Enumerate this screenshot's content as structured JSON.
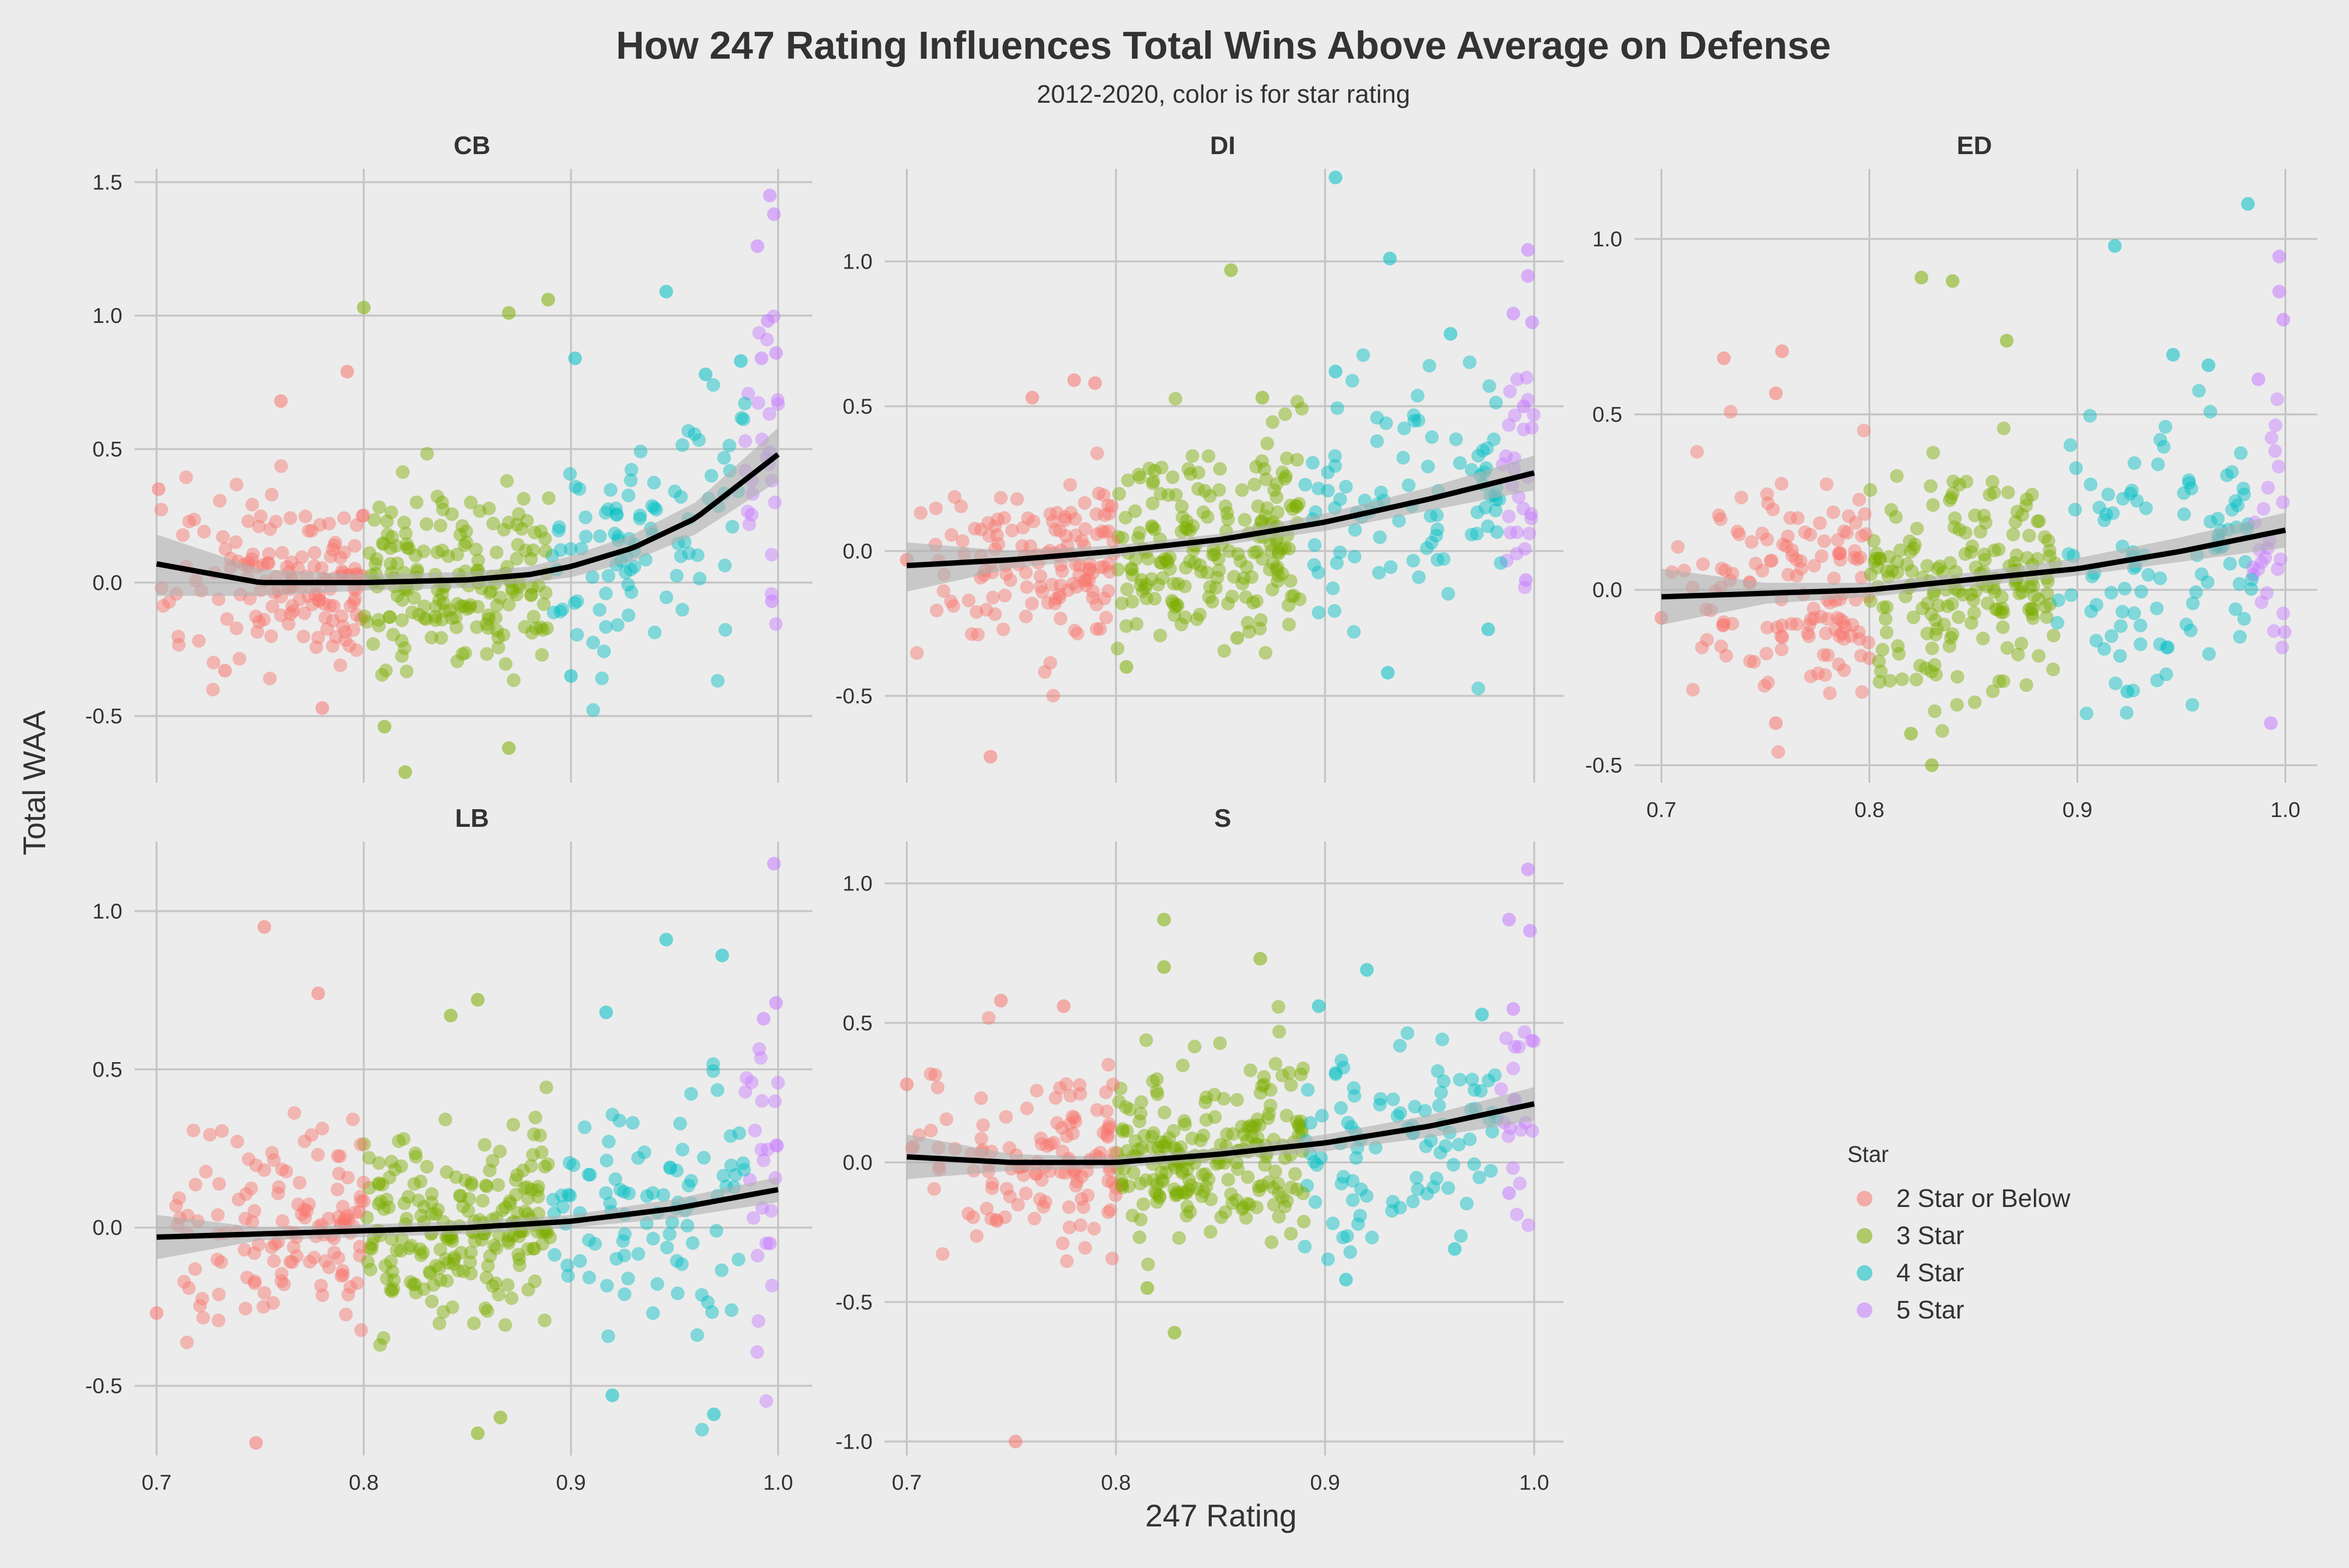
{
  "title": "How 247 Rating Influences Total Wins Above Average on Defense",
  "subtitle": "2012-2020, color is for star rating",
  "xlabel": "247 Rating",
  "ylabel": "Total WAA",
  "legend": {
    "title": "Star",
    "position": "right",
    "items": [
      {
        "label": "2 Star or Below",
        "color": "#F8766D"
      },
      {
        "label": "3 Star",
        "color": "#7CAE00"
      },
      {
        "label": "4 Star",
        "color": "#00BFC4"
      },
      {
        "label": "5 Star",
        "color": "#C77CFF"
      }
    ]
  },
  "colors": {
    "background": "#ececec",
    "grid": "#c6c6c6",
    "trend": "#000000",
    "band": "#b0b0b0"
  },
  "chart_data": {
    "type": "scatter",
    "facets": [
      {
        "name": "CB",
        "xlim": [
          0.7,
          1.0
        ],
        "ylim": [
          -0.75,
          1.55
        ],
        "xticks": [
          0.7,
          0.8,
          0.9,
          1.0
        ],
        "yticks": [
          -0.5,
          0.0,
          0.5,
          1.0,
          1.5
        ],
        "ytick_labels": [
          "-0.5",
          "0.0",
          "0.5",
          "1.0",
          "1.5"
        ],
        "trend": {
          "x": [
            0.7,
            0.75,
            0.8,
            0.85,
            0.88,
            0.9,
            0.93,
            0.96,
            1.0
          ],
          "y": [
            0.07,
            0.0,
            0.0,
            0.01,
            0.03,
            0.06,
            0.13,
            0.24,
            0.48
          ]
        },
        "band": {
          "upper": [
            0.18,
            0.05,
            0.03,
            0.04,
            0.06,
            0.1,
            0.18,
            0.3,
            0.58
          ],
          "lower": [
            -0.05,
            -0.05,
            -0.03,
            -0.02,
            0.0,
            0.02,
            0.08,
            0.18,
            0.38
          ]
        },
        "highlights": [
          {
            "x": 0.8,
            "y": 1.03,
            "star": 2
          },
          {
            "x": 0.87,
            "y": 1.01,
            "star": 2
          },
          {
            "x": 0.889,
            "y": 1.06,
            "star": 2
          },
          {
            "x": 0.82,
            "y": -0.71,
            "star": 2
          },
          {
            "x": 0.87,
            "y": -0.62,
            "star": 2
          },
          {
            "x": 0.81,
            "y": -0.54,
            "star": 2
          },
          {
            "x": 0.902,
            "y": 0.84,
            "star": 3
          },
          {
            "x": 0.946,
            "y": 1.09,
            "star": 3
          },
          {
            "x": 0.982,
            "y": 0.83,
            "star": 3
          },
          {
            "x": 0.965,
            "y": 0.78,
            "star": 3
          },
          {
            "x": 0.9,
            "y": -0.35,
            "star": 3
          },
          {
            "x": 0.996,
            "y": 1.45,
            "star": 4
          },
          {
            "x": 0.998,
            "y": 1.38,
            "star": 4
          },
          {
            "x": 0.99,
            "y": 1.26,
            "star": 4
          },
          {
            "x": 0.995,
            "y": 0.98,
            "star": 4
          },
          {
            "x": 0.999,
            "y": 0.86,
            "star": 4
          },
          {
            "x": 0.992,
            "y": 0.84,
            "star": 4
          },
          {
            "x": 0.997,
            "y": -0.07,
            "star": 4
          },
          {
            "x": 0.701,
            "y": 0.35,
            "star": 1
          },
          {
            "x": 0.76,
            "y": 0.68,
            "star": 1
          },
          {
            "x": 0.792,
            "y": 0.79,
            "star": 1
          },
          {
            "x": 0.78,
            "y": -0.47,
            "star": 1
          },
          {
            "x": 0.733,
            "y": -0.33,
            "star": 1
          }
        ]
      },
      {
        "name": "DI",
        "xlim": [
          0.7,
          1.0
        ],
        "ylim": [
          -0.8,
          1.32
        ],
        "xticks": [
          0.7,
          0.8,
          0.9,
          1.0
        ],
        "yticks": [
          -0.5,
          0.0,
          0.5,
          1.0
        ],
        "ytick_labels": [
          "-0.5",
          "0.0",
          "0.5",
          "1.0"
        ],
        "trend": {
          "x": [
            0.7,
            0.75,
            0.8,
            0.85,
            0.9,
            0.95,
            1.0
          ],
          "y": [
            -0.05,
            -0.03,
            0.0,
            0.04,
            0.1,
            0.18,
            0.27
          ]
        },
        "band": {
          "upper": [
            0.03,
            0.0,
            0.02,
            0.06,
            0.13,
            0.22,
            0.33
          ],
          "lower": [
            -0.14,
            -0.06,
            -0.02,
            0.02,
            0.07,
            0.14,
            0.21
          ]
        },
        "highlights": [
          {
            "x": 0.855,
            "y": 0.97,
            "star": 2
          },
          {
            "x": 0.87,
            "y": 0.53,
            "star": 2
          },
          {
            "x": 0.805,
            "y": -0.4,
            "star": 2
          },
          {
            "x": 0.858,
            "y": -0.3,
            "star": 2
          },
          {
            "x": 0.905,
            "y": 1.29,
            "star": 3
          },
          {
            "x": 0.931,
            "y": 1.01,
            "star": 3
          },
          {
            "x": 0.96,
            "y": 0.75,
            "star": 3
          },
          {
            "x": 0.905,
            "y": 0.62,
            "star": 3
          },
          {
            "x": 0.93,
            "y": -0.42,
            "star": 3
          },
          {
            "x": 0.978,
            "y": -0.27,
            "star": 3
          },
          {
            "x": 0.997,
            "y": 1.04,
            "star": 4
          },
          {
            "x": 0.997,
            "y": 0.95,
            "star": 4
          },
          {
            "x": 0.99,
            "y": 0.82,
            "star": 4
          },
          {
            "x": 0.999,
            "y": 0.79,
            "star": 4
          },
          {
            "x": 0.995,
            "y": 0.5,
            "star": 4
          },
          {
            "x": 0.996,
            "y": -0.1,
            "star": 4
          },
          {
            "x": 0.7,
            "y": -0.03,
            "star": 1
          },
          {
            "x": 0.74,
            "y": -0.71,
            "star": 1
          },
          {
            "x": 0.78,
            "y": 0.59,
            "star": 1
          },
          {
            "x": 0.79,
            "y": 0.58,
            "star": 1
          },
          {
            "x": 0.76,
            "y": 0.53,
            "star": 1
          }
        ]
      },
      {
        "name": "ED",
        "xlim": [
          0.7,
          1.0
        ],
        "ylim": [
          -0.55,
          1.2
        ],
        "xticks": [
          0.7,
          0.8,
          0.9,
          1.0
        ],
        "yticks": [
          -0.5,
          0.0,
          0.5,
          1.0
        ],
        "ytick_labels": [
          "-0.5",
          "0.0",
          "0.5",
          "1.0"
        ],
        "xtick_labels": [
          "0.7",
          "0.8",
          "0.9",
          "1.0"
        ],
        "trend": {
          "x": [
            0.7,
            0.75,
            0.8,
            0.85,
            0.9,
            0.95,
            1.0
          ],
          "y": [
            -0.02,
            -0.01,
            0.0,
            0.03,
            0.06,
            0.11,
            0.17
          ]
        },
        "band": {
          "upper": [
            0.06,
            0.02,
            0.02,
            0.05,
            0.09,
            0.15,
            0.22
          ],
          "lower": [
            -0.1,
            -0.04,
            -0.02,
            0.01,
            0.04,
            0.08,
            0.12
          ]
        },
        "highlights": [
          {
            "x": 0.825,
            "y": 0.89,
            "star": 2
          },
          {
            "x": 0.84,
            "y": 0.88,
            "star": 2
          },
          {
            "x": 0.866,
            "y": 0.71,
            "star": 2
          },
          {
            "x": 0.83,
            "y": -0.5,
            "star": 2
          },
          {
            "x": 0.82,
            "y": -0.41,
            "star": 2
          },
          {
            "x": 0.982,
            "y": 1.1,
            "star": 3
          },
          {
            "x": 0.918,
            "y": 0.98,
            "star": 3
          },
          {
            "x": 0.946,
            "y": 0.67,
            "star": 3
          },
          {
            "x": 0.963,
            "y": 0.64,
            "star": 3
          },
          {
            "x": 0.924,
            "y": -0.29,
            "star": 3
          },
          {
            "x": 0.997,
            "y": 0.95,
            "star": 4
          },
          {
            "x": 0.997,
            "y": 0.85,
            "star": 4
          },
          {
            "x": 0.999,
            "y": 0.77,
            "star": 4
          },
          {
            "x": 0.987,
            "y": 0.6,
            "star": 4
          },
          {
            "x": 0.993,
            "y": -0.38,
            "star": 4
          },
          {
            "x": 0.73,
            "y": 0.66,
            "star": 1
          },
          {
            "x": 0.758,
            "y": 0.68,
            "star": 1
          },
          {
            "x": 0.755,
            "y": 0.56,
            "star": 1
          },
          {
            "x": 0.755,
            "y": -0.38,
            "star": 1
          },
          {
            "x": 0.7,
            "y": -0.08,
            "star": 1
          }
        ]
      },
      {
        "name": "LB",
        "xlim": [
          0.7,
          1.0
        ],
        "ylim": [
          -0.72,
          1.22
        ],
        "xticks": [
          0.7,
          0.8,
          0.9,
          1.0
        ],
        "yticks": [
          -0.5,
          0.0,
          0.5,
          1.0
        ],
        "ytick_labels": [
          "-0.5",
          "0.0",
          "0.5",
          "1.0"
        ],
        "xtick_labels": [
          "0.7",
          "0.8",
          "0.9",
          "1.0"
        ],
        "trend": {
          "x": [
            0.7,
            0.75,
            0.8,
            0.85,
            0.9,
            0.95,
            1.0
          ],
          "y": [
            -0.03,
            -0.02,
            -0.01,
            0.0,
            0.02,
            0.06,
            0.12
          ]
        },
        "band": {
          "upper": [
            0.04,
            0.0,
            0.01,
            0.02,
            0.04,
            0.09,
            0.16
          ],
          "lower": [
            -0.1,
            -0.04,
            -0.03,
            -0.02,
            0.0,
            0.03,
            0.08
          ]
        },
        "highlights": [
          {
            "x": 0.855,
            "y": 0.72,
            "star": 2
          },
          {
            "x": 0.842,
            "y": 0.67,
            "star": 2
          },
          {
            "x": 0.855,
            "y": -0.65,
            "star": 2
          },
          {
            "x": 0.866,
            "y": -0.6,
            "star": 2
          },
          {
            "x": 0.946,
            "y": 0.91,
            "star": 3
          },
          {
            "x": 0.973,
            "y": 0.86,
            "star": 3
          },
          {
            "x": 0.917,
            "y": 0.68,
            "star": 3
          },
          {
            "x": 0.969,
            "y": -0.59,
            "star": 3
          },
          {
            "x": 0.92,
            "y": -0.53,
            "star": 3
          },
          {
            "x": 0.998,
            "y": 1.15,
            "star": 4
          },
          {
            "x": 0.999,
            "y": 0.71,
            "star": 4
          },
          {
            "x": 0.993,
            "y": 0.66,
            "star": 4
          },
          {
            "x": 0.996,
            "y": -0.05,
            "star": 4
          },
          {
            "x": 0.752,
            "y": 0.95,
            "star": 1
          },
          {
            "x": 0.778,
            "y": 0.74,
            "star": 1
          },
          {
            "x": 0.748,
            "y": -0.68,
            "star": 1
          },
          {
            "x": 0.7,
            "y": -0.27,
            "star": 1
          }
        ]
      },
      {
        "name": "S",
        "xlim": [
          0.7,
          1.0
        ],
        "ylim": [
          -1.05,
          1.15
        ],
        "xticks": [
          0.7,
          0.8,
          0.9,
          1.0
        ],
        "yticks": [
          -1.0,
          -0.5,
          0.0,
          0.5,
          1.0
        ],
        "ytick_labels": [
          "-1.0",
          "-0.5",
          "0.0",
          "0.5",
          "1.0"
        ],
        "xtick_labels": [
          "0.7",
          "0.8",
          "0.9",
          "1.0"
        ],
        "trend": {
          "x": [
            0.7,
            0.75,
            0.8,
            0.85,
            0.9,
            0.95,
            1.0
          ],
          "y": [
            0.02,
            0.0,
            0.0,
            0.03,
            0.07,
            0.13,
            0.21
          ]
        },
        "band": {
          "upper": [
            0.1,
            0.03,
            0.02,
            0.05,
            0.1,
            0.17,
            0.27
          ],
          "lower": [
            -0.06,
            -0.03,
            -0.02,
            0.01,
            0.04,
            0.09,
            0.15
          ]
        },
        "highlights": [
          {
            "x": 0.823,
            "y": 0.87,
            "star": 2
          },
          {
            "x": 0.869,
            "y": 0.73,
            "star": 2
          },
          {
            "x": 0.823,
            "y": 0.7,
            "star": 2
          },
          {
            "x": 0.828,
            "y": -0.61,
            "star": 2
          },
          {
            "x": 0.815,
            "y": -0.45,
            "star": 2
          },
          {
            "x": 0.92,
            "y": 0.69,
            "star": 3
          },
          {
            "x": 0.897,
            "y": 0.56,
            "star": 3
          },
          {
            "x": 0.975,
            "y": 0.53,
            "star": 3
          },
          {
            "x": 0.91,
            "y": -0.42,
            "star": 3
          },
          {
            "x": 0.962,
            "y": -0.31,
            "star": 3
          },
          {
            "x": 0.997,
            "y": 1.05,
            "star": 4
          },
          {
            "x": 0.988,
            "y": 0.87,
            "star": 4
          },
          {
            "x": 0.998,
            "y": 0.83,
            "star": 4
          },
          {
            "x": 0.99,
            "y": 0.55,
            "star": 4
          },
          {
            "x": 0.988,
            "y": -0.11,
            "star": 4
          },
          {
            "x": 0.752,
            "y": -1.0,
            "star": 1
          },
          {
            "x": 0.745,
            "y": 0.58,
            "star": 1
          },
          {
            "x": 0.775,
            "y": 0.56,
            "star": 1
          },
          {
            "x": 0.7,
            "y": 0.28,
            "star": 1
          }
        ]
      }
    ],
    "star_bands": {
      "star1": [
        0.7,
        0.8
      ],
      "star2": [
        0.8,
        0.89
      ],
      "star3": [
        0.89,
        0.984
      ],
      "star4": [
        0.984,
        1.0
      ]
    },
    "noise_points_per_facet": 460
  }
}
